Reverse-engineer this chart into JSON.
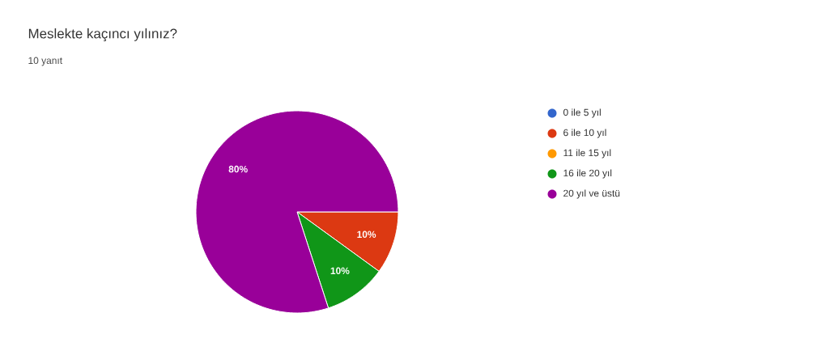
{
  "chart_data": {
    "type": "pie",
    "title": "Meslekte kaçıncı yılınız?",
    "subtitle": "10 yanıt",
    "categories": [
      "0 ile 5 yıl",
      "6 ile 10 yıl",
      "11 ile 15 yıl",
      "16 ile 20 yıl",
      "20 yıl ve üstü"
    ],
    "values": [
      0,
      10,
      0,
      10,
      80
    ],
    "colors": [
      "#3366cc",
      "#dc3912",
      "#ff9900",
      "#109618",
      "#990099"
    ],
    "value_labels": [
      null,
      "10%",
      null,
      "10%",
      "80%"
    ],
    "legend": "right"
  }
}
